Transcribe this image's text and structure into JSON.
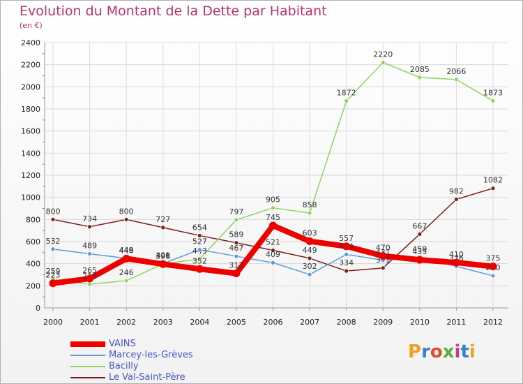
{
  "header": {
    "title": "Evolution du Montant de la Dette par Habitant",
    "subtitle": "(en €)"
  },
  "logo": {
    "text": "Proxiti",
    "colors": [
      "#f0a020",
      "#3a7fd0",
      "#e04a2a",
      "#56b040",
      "#c04080",
      "#3a7fd0",
      "#f0a020"
    ]
  },
  "chart_data": {
    "type": "line",
    "x": [
      "2000",
      "2001",
      "2002",
      "2003",
      "2004",
      "2005",
      "2006",
      "2007",
      "2008",
      "2009",
      "2010",
      "2011",
      "2012"
    ],
    "ylim": [
      0,
      2400
    ],
    "yticks": [
      0,
      200,
      400,
      600,
      800,
      1000,
      1200,
      1400,
      1600,
      1800,
      2000,
      2200,
      2400
    ],
    "grid": true,
    "legend_position": "bottom-left",
    "series": [
      {
        "name": "Le Val-Saint-Père",
        "color": "#7a1f1f",
        "values": [
          800,
          734,
          800,
          727,
          654,
          589,
          521,
          449,
          334,
          361,
          667,
          982,
          1082
        ]
      },
      {
        "name": "Bacilly",
        "color": "#8fd45c",
        "values": [
          259,
          214,
          246,
          398,
          443,
          797,
          905,
          858,
          1872,
          2220,
          2085,
          2066,
          1873
        ]
      },
      {
        "name": "Marcey-les-Grèves",
        "color": "#5b9bd5",
        "values": [
          532,
          489,
          449,
          401,
          527,
          467,
          409,
          302,
          484,
          431,
          459,
          376,
          290
        ]
      },
      {
        "name": "VAINS",
        "color": "#ee0000",
        "values": [
          223,
          265,
          446,
          396,
          352,
          312,
          745,
          603,
          557,
          470,
          435,
          410,
          375
        ]
      }
    ],
    "legend_order": [
      "VAINS",
      "Marcey-les-Grèves",
      "Bacilly",
      "Le Val-Saint-Père"
    ]
  }
}
